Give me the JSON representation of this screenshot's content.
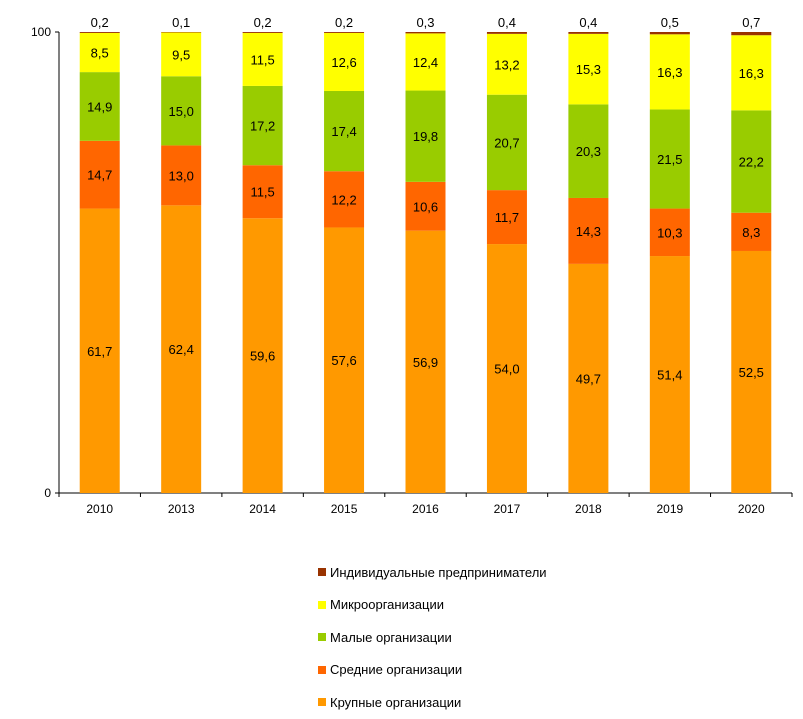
{
  "chart_data": {
    "type": "bar",
    "stacked": true,
    "categories": [
      "2010",
      "2013",
      "2014",
      "2015",
      "2016",
      "2017",
      "2018",
      "2019",
      "2020"
    ],
    "series": [
      {
        "name": "Крупные организации",
        "color": "#FF9900",
        "values": [
          61.7,
          62.4,
          59.6,
          57.6,
          56.9,
          54.0,
          49.7,
          51.4,
          52.5
        ],
        "labels": [
          "61,7",
          "62,4",
          "59,6",
          "57,6",
          "56,9",
          "54,0",
          "49,7",
          "51,4",
          "52,5"
        ]
      },
      {
        "name": "Средние организации",
        "color": "#FF6600",
        "values": [
          14.7,
          13.0,
          11.5,
          12.2,
          10.6,
          11.7,
          14.3,
          10.3,
          8.3
        ],
        "labels": [
          "14,7",
          "13,0",
          "11,5",
          "12,2",
          "10,6",
          "11,7",
          "14,3",
          "10,3",
          "8,3"
        ]
      },
      {
        "name": "Малые организации",
        "color": "#99CC00",
        "values": [
          14.9,
          15.0,
          17.2,
          17.4,
          19.8,
          20.7,
          20.3,
          21.5,
          22.2
        ],
        "labels": [
          "14,9",
          "15,0",
          "17,2",
          "17,4",
          "19,8",
          "20,7",
          "20,3",
          "21,5",
          "22,2"
        ]
      },
      {
        "name": "Микроорганизации",
        "color": "#FFFF00",
        "values": [
          8.5,
          9.5,
          11.5,
          12.6,
          12.4,
          13.2,
          15.3,
          16.3,
          16.3
        ],
        "labels": [
          "8,5",
          "9,5",
          "11,5",
          "12,6",
          "12,4",
          "13,2",
          "15,3",
          "16,3",
          "16,3"
        ]
      },
      {
        "name": "Индивидуальные предприниматели",
        "color": "#993300",
        "values": [
          0.2,
          0.1,
          0.2,
          0.2,
          0.3,
          0.4,
          0.4,
          0.5,
          0.7
        ],
        "labels": [
          "0,2",
          "0,1",
          "0,2",
          "0,2",
          "0,3",
          "0,4",
          "0,4",
          "0,5",
          "0,7"
        ]
      }
    ],
    "ylim": [
      0,
      100
    ],
    "yticks": [
      "0",
      "100"
    ],
    "title": "",
    "xlabel": "",
    "ylabel": "",
    "grid": false,
    "legend_position": "bottom"
  },
  "legend": {
    "items": [
      {
        "label": "Индивидуальные предприниматели",
        "color": "#993300"
      },
      {
        "label": "Микроорганизации",
        "color": "#FFFF00"
      },
      {
        "label": "Малые организации",
        "color": "#99CC00"
      },
      {
        "label": "Средние организации",
        "color": "#FF6600"
      },
      {
        "label": "Крупные организации",
        "color": "#FF9900"
      }
    ]
  }
}
